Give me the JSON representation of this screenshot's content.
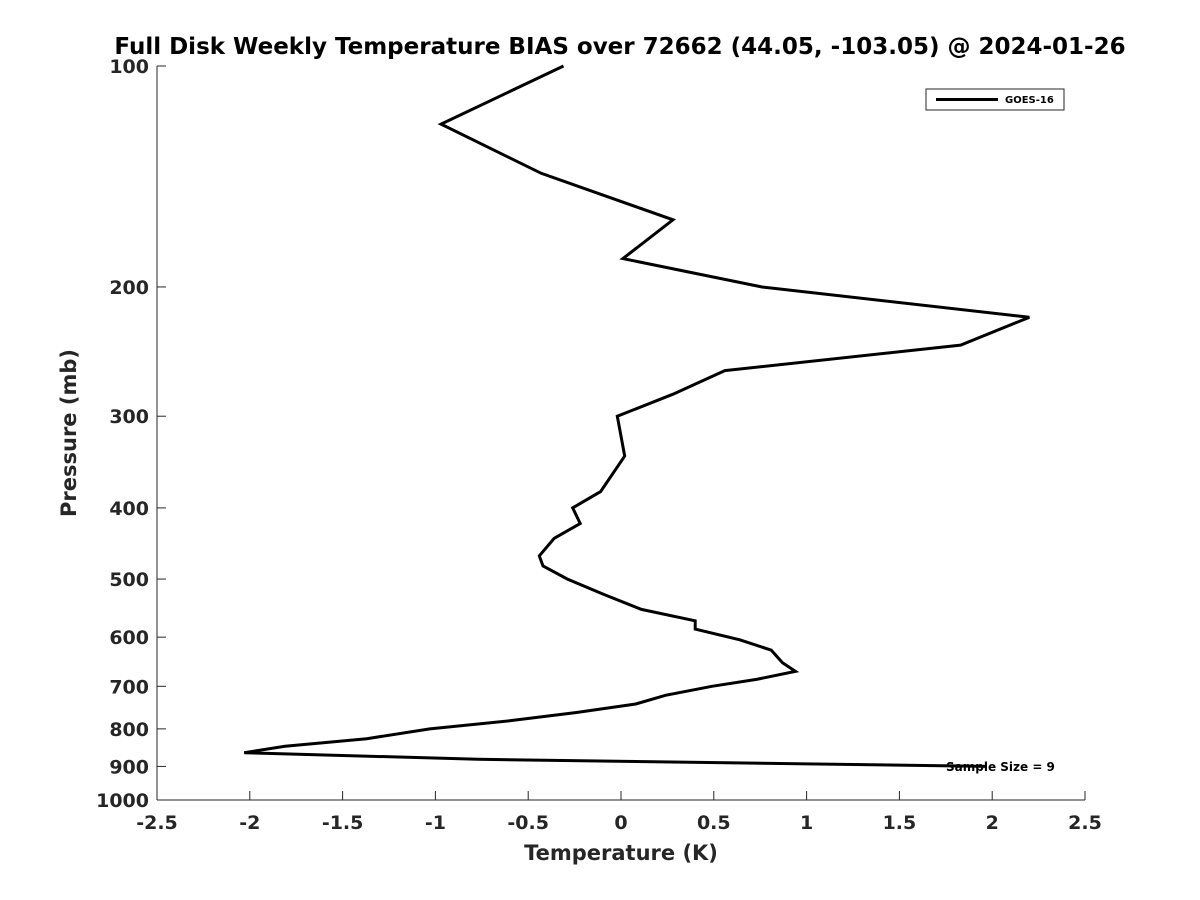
{
  "chart_data": {
    "type": "line",
    "title": "Full Disk Weekly Temperature BIAS over 72662 (44.05, -103.05) @ 2024-01-26",
    "xlabel": "Temperature (K)",
    "ylabel": "Pressure (mb)",
    "xlim": [
      -2.5,
      2.5
    ],
    "ylim": [
      100,
      1000
    ],
    "y_scale": "log",
    "y_reversed": true,
    "grid": false,
    "legend_position": "top-right",
    "x_ticks": [
      "-2.5",
      "-2",
      "-1.5",
      "-1",
      "-0.5",
      "0",
      "0.5",
      "1",
      "1.5",
      "2",
      "2.5"
    ],
    "y_ticks": [
      "100",
      "200",
      "300",
      "400",
      "500",
      "600",
      "700",
      "800",
      "900",
      "1000"
    ],
    "annotation": "Sample Size = 9",
    "series": [
      {
        "name": "GOES-16",
        "color": "#000000",
        "points": [
          {
            "x": -0.31,
            "p": 100
          },
          {
            "x": -0.97,
            "p": 120
          },
          {
            "x": -0.43,
            "p": 140
          },
          {
            "x": 0.28,
            "p": 162
          },
          {
            "x": 0.01,
            "p": 183
          },
          {
            "x": 0.76,
            "p": 200
          },
          {
            "x": 2.2,
            "p": 220
          },
          {
            "x": 1.83,
            "p": 240
          },
          {
            "x": 0.56,
            "p": 260
          },
          {
            "x": 0.28,
            "p": 280
          },
          {
            "x": -0.02,
            "p": 300
          },
          {
            "x": 0.02,
            "p": 340
          },
          {
            "x": -0.11,
            "p": 380
          },
          {
            "x": -0.26,
            "p": 400
          },
          {
            "x": -0.22,
            "p": 420
          },
          {
            "x": -0.36,
            "p": 440
          },
          {
            "x": -0.44,
            "p": 465
          },
          {
            "x": -0.42,
            "p": 480
          },
          {
            "x": -0.29,
            "p": 500
          },
          {
            "x": -0.09,
            "p": 525
          },
          {
            "x": 0.11,
            "p": 550
          },
          {
            "x": 0.4,
            "p": 570
          },
          {
            "x": 0.4,
            "p": 585
          },
          {
            "x": 0.64,
            "p": 605
          },
          {
            "x": 0.81,
            "p": 625
          },
          {
            "x": 0.87,
            "p": 650
          },
          {
            "x": 0.94,
            "p": 668
          },
          {
            "x": 0.73,
            "p": 685
          },
          {
            "x": 0.49,
            "p": 700
          },
          {
            "x": 0.24,
            "p": 720
          },
          {
            "x": 0.08,
            "p": 740
          },
          {
            "x": -0.24,
            "p": 760
          },
          {
            "x": -0.6,
            "p": 780
          },
          {
            "x": -1.03,
            "p": 800
          },
          {
            "x": -1.37,
            "p": 825
          },
          {
            "x": -1.81,
            "p": 845
          },
          {
            "x": -2.03,
            "p": 862
          },
          {
            "x": -0.77,
            "p": 880
          },
          {
            "x": 1.97,
            "p": 900
          }
        ]
      }
    ]
  }
}
